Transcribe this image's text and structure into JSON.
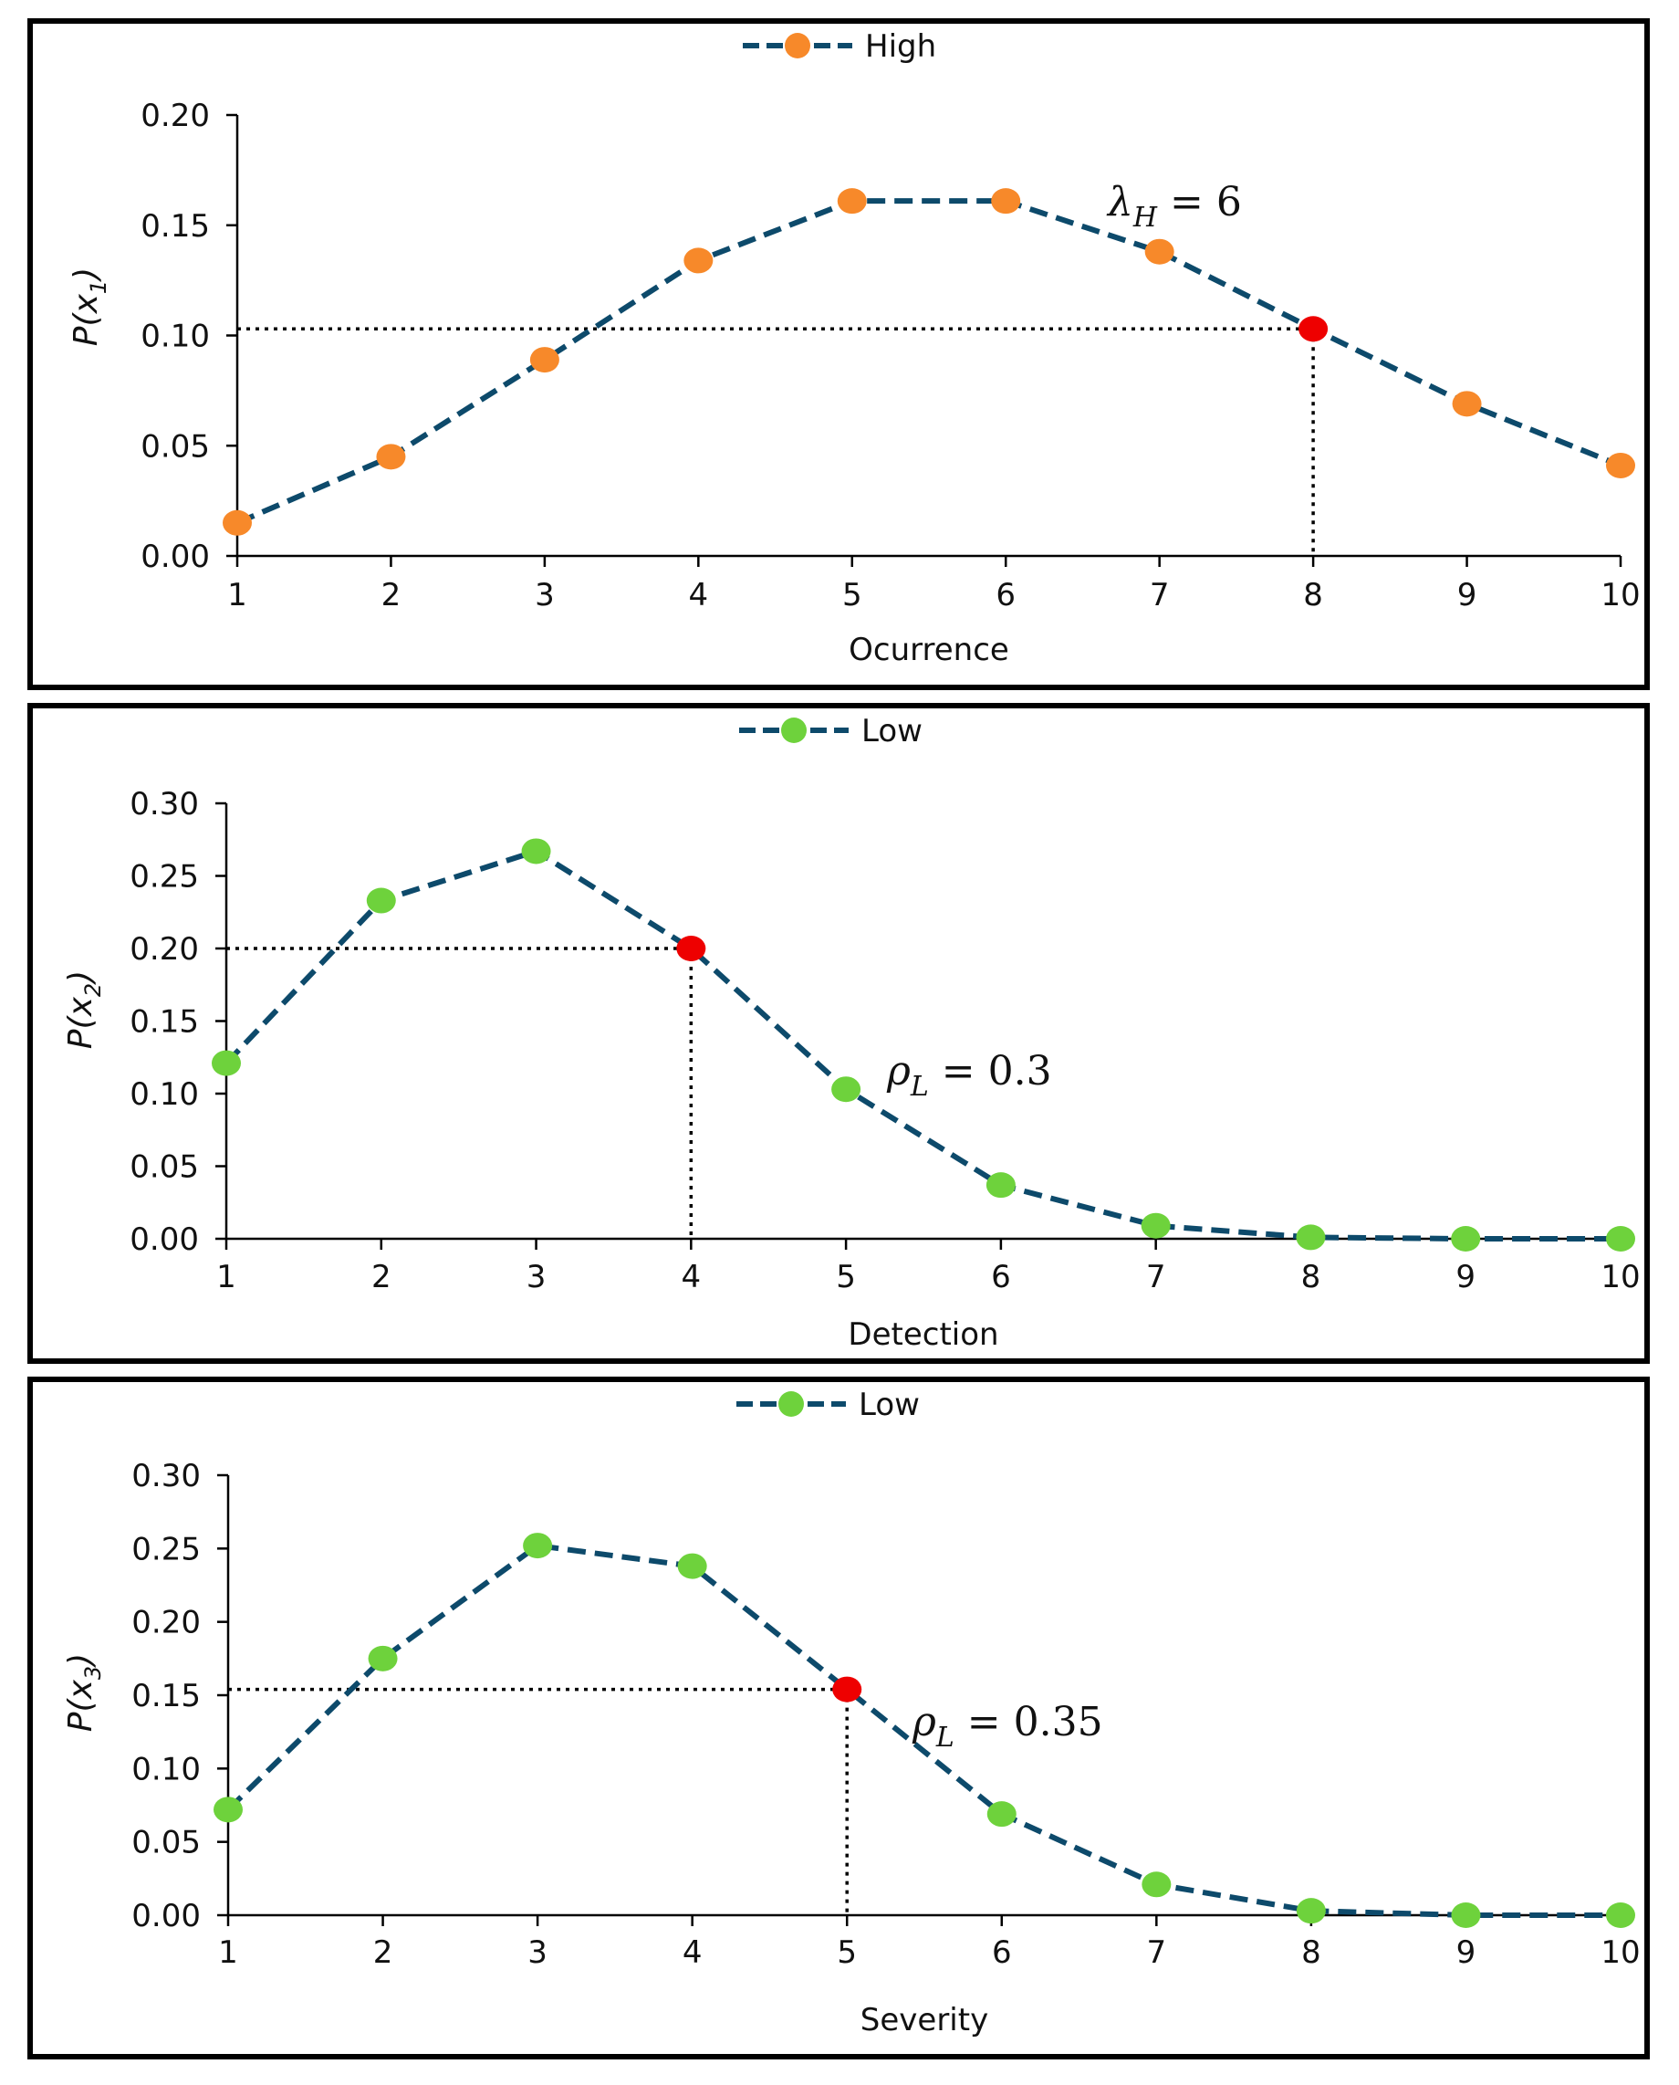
{
  "chart_data": [
    {
      "type": "line",
      "categories": [
        "1",
        "2",
        "3",
        "4",
        "5",
        "6",
        "7",
        "8",
        "9",
        "10"
      ],
      "series": [
        {
          "name": "High",
          "values": [
            0.015,
            0.045,
            0.089,
            0.134,
            0.161,
            0.161,
            0.138,
            0.103,
            0.069,
            0.041
          ]
        }
      ],
      "ylim": [
        0,
        0.2
      ],
      "yticks": [
        "0.00",
        "0.05",
        "0.10",
        "0.15",
        "0.20"
      ],
      "xlabel": "Ocurrence",
      "ylabel_main": "P(x",
      "ylabel_sub": "1",
      "ylabel_end": ")",
      "legend": "High",
      "annotation_main": "λ",
      "annotation_sub": "H",
      "annotation_rest": " = 6",
      "highlight_index": 7,
      "marker_color": "#f7892a",
      "highlight_color": "#ee0000",
      "line_color": "#0d4a6b"
    },
    {
      "type": "line",
      "categories": [
        "1",
        "2",
        "3",
        "4",
        "5",
        "6",
        "7",
        "8",
        "9",
        "10"
      ],
      "series": [
        {
          "name": "Low",
          "values": [
            0.121,
            0.233,
            0.267,
            0.2,
            0.103,
            0.037,
            0.009,
            0.001,
            0.0,
            0.0
          ]
        }
      ],
      "ylim": [
        0,
        0.3
      ],
      "yticks": [
        "0.00",
        "0.05",
        "0.10",
        "0.15",
        "0.20",
        "0.25",
        "0.30"
      ],
      "xlabel": "Detection",
      "ylabel_main": "P(x",
      "ylabel_sub": "2",
      "ylabel_end": ")",
      "legend": "Low",
      "annotation_main": "ρ",
      "annotation_sub": "L",
      "annotation_rest": " = 0.3",
      "highlight_index": 3,
      "marker_color": "#6ed23c",
      "highlight_color": "#ee0000",
      "line_color": "#0d4a6b"
    },
    {
      "type": "line",
      "categories": [
        "1",
        "2",
        "3",
        "4",
        "5",
        "6",
        "7",
        "8",
        "9",
        "10"
      ],
      "series": [
        {
          "name": "Low",
          "values": [
            0.072,
            0.175,
            0.252,
            0.238,
            0.154,
            0.069,
            0.021,
            0.003,
            0.0,
            0.0
          ]
        }
      ],
      "ylim": [
        0,
        0.3
      ],
      "yticks": [
        "0.00",
        "0.05",
        "0.10",
        "0.15",
        "0.20",
        "0.25",
        "0.30"
      ],
      "xlabel": "Severity",
      "ylabel_main": "P(x",
      "ylabel_sub": "3",
      "ylabel_end": ")",
      "legend": "Low",
      "annotation_main": "ρ",
      "annotation_sub": "L",
      "annotation_rest": " = 0.35",
      "highlight_index": 4,
      "marker_color": "#6ed23c",
      "highlight_color": "#ee0000",
      "line_color": "#0d4a6b"
    }
  ]
}
